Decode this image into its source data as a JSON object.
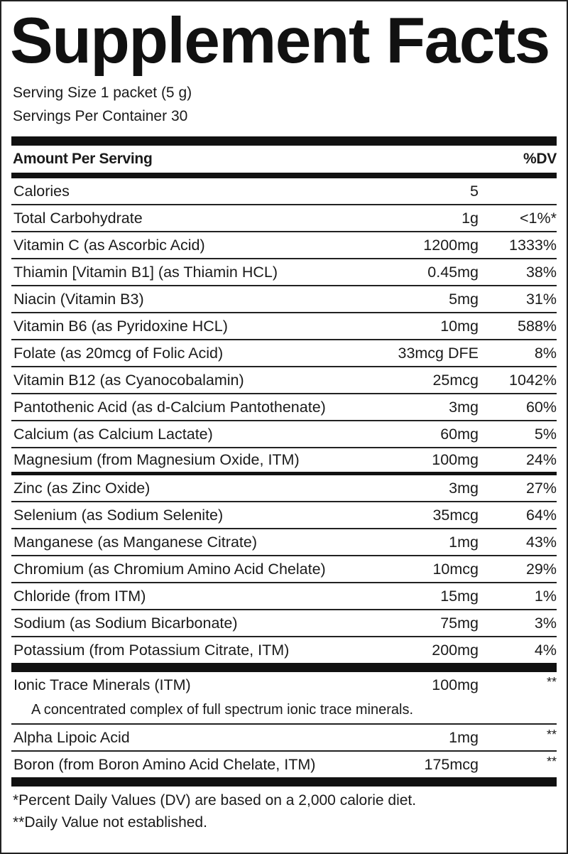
{
  "title": "Supplement Facts",
  "serving_size": "Serving Size 1 packet (5 g)",
  "servings_per_container": "Servings Per Container 30",
  "header": {
    "amount": "Amount Per Serving",
    "dv": "%DV"
  },
  "nutrients": [
    {
      "name": "Calories",
      "amount": "5",
      "dv": ""
    },
    {
      "name": "Total Carbohydrate",
      "amount": "1g",
      "dv": "<1%*"
    },
    {
      "name": "Vitamin C (as Ascorbic Acid)",
      "amount": "1200mg",
      "dv": "1333%"
    },
    {
      "name": "Thiamin [Vitamin B1] (as Thiamin HCL)",
      "amount": "0.45mg",
      "dv": "38%"
    },
    {
      "name": "Niacin (Vitamin B3)",
      "amount": "5mg",
      "dv": "31%"
    },
    {
      "name": "Vitamin B6 (as Pyridoxine HCL)",
      "amount": "10mg",
      "dv": "588%"
    },
    {
      "name": "Folate (as 20mcg of Folic Acid)",
      "amount": "33mcg DFE",
      "dv": "8%"
    },
    {
      "name": "Vitamin B12 (as Cyanocobalamin)",
      "amount": "25mcg",
      "dv": "1042%"
    },
    {
      "name": "Pantothenic Acid (as d-Calcium Pantothenate)",
      "amount": "3mg",
      "dv": "60%"
    },
    {
      "name": "Calcium (as Calcium Lactate)",
      "amount": "60mg",
      "dv": "5%"
    },
    {
      "name": "Magnesium (from Magnesium Oxide, ITM)",
      "amount": "100mg",
      "dv": "24%"
    },
    {
      "name": "Zinc (as Zinc Oxide)",
      "amount": "3mg",
      "dv": "27%"
    },
    {
      "name": "Selenium (as Sodium Selenite)",
      "amount": "35mcg",
      "dv": "64%"
    },
    {
      "name": "Manganese (as Manganese Citrate)",
      "amount": "1mg",
      "dv": "43%"
    },
    {
      "name": "Chromium (as Chromium Amino Acid Chelate)",
      "amount": "10mcg",
      "dv": "29%"
    },
    {
      "name": "Chloride (from ITM)",
      "amount": "15mg",
      "dv": "1%"
    },
    {
      "name": "Sodium (as Sodium Bicarbonate)",
      "amount": "75mg",
      "dv": "3%"
    },
    {
      "name": "Potassium (from Potassium Citrate, ITM)",
      "amount": "200mg",
      "dv": "4%"
    }
  ],
  "other": [
    {
      "name": "Ionic Trace Minerals (ITM)",
      "amount": "100mg",
      "dv": "**",
      "description": "A concentrated complex of full spectrum ionic trace minerals."
    },
    {
      "name": "Alpha Lipoic Acid",
      "amount": "1mg",
      "dv": "**"
    },
    {
      "name": "Boron (from Boron Amino Acid Chelate, ITM)",
      "amount": "175mcg",
      "dv": "**"
    }
  ],
  "footnotes": [
    "*Percent Daily Values (DV) are based on a 2,000 calorie diet.",
    "**Daily Value not established."
  ]
}
